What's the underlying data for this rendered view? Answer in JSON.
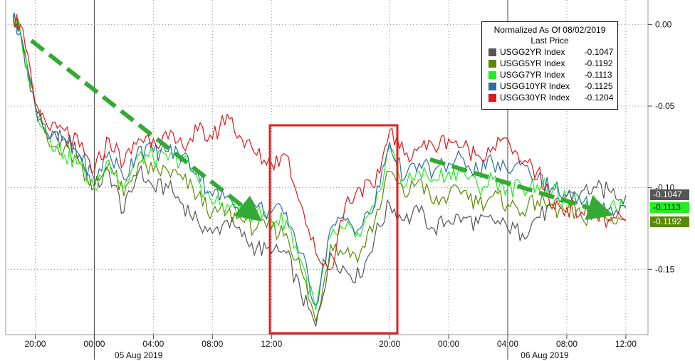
{
  "chart_data": {
    "type": "line",
    "title": "Normalized As Of 08/02/2019",
    "subtitle": "Last Price",
    "xlabel": "",
    "ylabel": "",
    "x_ticks": [
      "20:00",
      "00:00",
      "04:00",
      "08:00",
      "12:00",
      "20:00",
      "00:00",
      "04:00",
      "08:00",
      "12:00"
    ],
    "date_labels": [
      "05 Aug 2019",
      "06 Aug 2019"
    ],
    "y_ticks": [
      "0.00",
      "-0.05",
      "-0.10",
      "-0.15"
    ],
    "ylim": [
      -0.19,
      0.015
    ],
    "grid": true,
    "legend_position": "top-right",
    "x": [
      -5.5,
      -5,
      -4,
      -3,
      -2,
      -1,
      0,
      1,
      2,
      3,
      4,
      5,
      6,
      7,
      8,
      9,
      10,
      11,
      12,
      13,
      14,
      15,
      16,
      17,
      18,
      19,
      20,
      21,
      22,
      23,
      24,
      25,
      26,
      27,
      28,
      29,
      30,
      31,
      32,
      33,
      34,
      35,
      36
    ],
    "series": [
      {
        "name": "USGG2YR Index",
        "color": "#555555",
        "last": "-0.1047",
        "values": [
          0.005,
          -0.005,
          -0.05,
          -0.07,
          -0.07,
          -0.08,
          -0.1,
          -0.09,
          -0.115,
          -0.09,
          -0.1,
          -0.1,
          -0.11,
          -0.12,
          -0.128,
          -0.12,
          -0.13,
          -0.137,
          -0.14,
          -0.14,
          -0.165,
          -0.185,
          -0.14,
          -0.15,
          -0.155,
          -0.13,
          -0.11,
          -0.12,
          -0.115,
          -0.125,
          -0.12,
          -0.118,
          -0.122,
          -0.12,
          -0.125,
          -0.128,
          -0.118,
          -0.113,
          -0.105,
          -0.102,
          -0.1,
          -0.103,
          -0.1047
        ]
      },
      {
        "name": "USGG5YR Index",
        "color": "#5a8a00",
        "last": "-0.1192",
        "values": [
          0.005,
          -0.005,
          -0.05,
          -0.075,
          -0.075,
          -0.085,
          -0.1,
          -0.085,
          -0.105,
          -0.085,
          -0.09,
          -0.09,
          -0.095,
          -0.105,
          -0.115,
          -0.115,
          -0.12,
          -0.125,
          -0.125,
          -0.128,
          -0.15,
          -0.182,
          -0.135,
          -0.14,
          -0.14,
          -0.12,
          -0.09,
          -0.105,
          -0.095,
          -0.11,
          -0.105,
          -0.102,
          -0.11,
          -0.105,
          -0.11,
          -0.115,
          -0.108,
          -0.113,
          -0.115,
          -0.118,
          -0.118,
          -0.118,
          -0.1192
        ]
      },
      {
        "name": "USGG7YR Index",
        "color": "#22ee22",
        "last": "-0.1113",
        "values": [
          0.005,
          -0.005,
          -0.05,
          -0.07,
          -0.08,
          -0.085,
          -0.1,
          -0.083,
          -0.1,
          -0.08,
          -0.082,
          -0.083,
          -0.082,
          -0.095,
          -0.11,
          -0.11,
          -0.115,
          -0.115,
          -0.12,
          -0.12,
          -0.145,
          -0.175,
          -0.13,
          -0.125,
          -0.13,
          -0.112,
          -0.075,
          -0.1,
          -0.09,
          -0.095,
          -0.09,
          -0.09,
          -0.1,
          -0.095,
          -0.1,
          -0.1,
          -0.098,
          -0.103,
          -0.108,
          -0.11,
          -0.11,
          -0.11,
          -0.1113
        ]
      },
      {
        "name": "USGG10YR Index",
        "color": "#2f6fa0",
        "last": "-0.1125",
        "values": [
          0.005,
          -0.005,
          -0.05,
          -0.07,
          -0.07,
          -0.08,
          -0.095,
          -0.078,
          -0.095,
          -0.075,
          -0.078,
          -0.078,
          -0.08,
          -0.09,
          -0.105,
          -0.105,
          -0.11,
          -0.112,
          -0.115,
          -0.115,
          -0.14,
          -0.172,
          -0.125,
          -0.12,
          -0.125,
          -0.11,
          -0.072,
          -0.095,
          -0.085,
          -0.09,
          -0.085,
          -0.082,
          -0.09,
          -0.085,
          -0.09,
          -0.085,
          -0.095,
          -0.1,
          -0.105,
          -0.11,
          -0.11,
          -0.112,
          -0.1125
        ]
      },
      {
        "name": "USGG30YR Index",
        "color": "#e01818",
        "last": "-0.1204",
        "values": [
          0.005,
          0.0,
          -0.048,
          -0.065,
          -0.065,
          -0.075,
          -0.09,
          -0.07,
          -0.085,
          -0.07,
          -0.07,
          -0.07,
          -0.075,
          -0.065,
          -0.07,
          -0.055,
          -0.07,
          -0.08,
          -0.085,
          -0.08,
          -0.11,
          -0.14,
          -0.15,
          -0.11,
          -0.1,
          -0.1,
          -0.065,
          -0.08,
          -0.075,
          -0.075,
          -0.07,
          -0.075,
          -0.08,
          -0.075,
          -0.07,
          -0.085,
          -0.09,
          -0.11,
          -0.112,
          -0.115,
          -0.118,
          -0.12,
          -0.1204
        ]
      }
    ],
    "badges": [
      {
        "label": "-0.1047",
        "color": "#555555",
        "value": -0.1047
      },
      {
        "label": "-0.1113",
        "color": "#22ee22",
        "value": -0.1113
      },
      {
        "label": "-0.1192",
        "color": "#5a8a00",
        "value": -0.1192
      }
    ]
  }
}
